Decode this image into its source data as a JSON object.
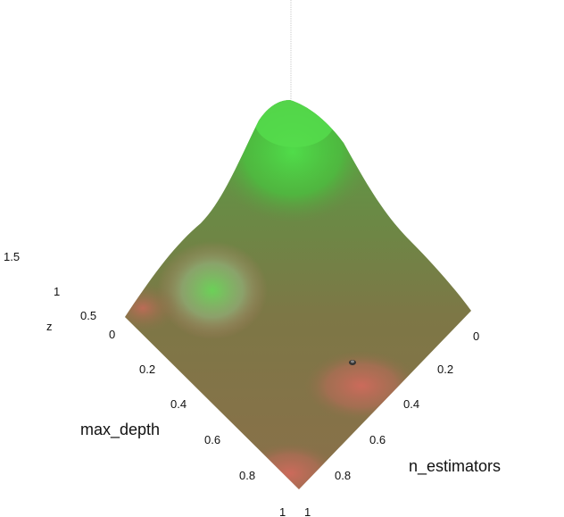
{
  "chart_data": {
    "type": "surface3d",
    "title": "",
    "axes": {
      "x": {
        "label": "max_depth",
        "range": [
          0,
          1
        ],
        "ticks": [
          "0",
          "0.2",
          "0.4",
          "0.6",
          "0.8",
          "1"
        ]
      },
      "y": {
        "label": "n_estimators",
        "range": [
          0,
          1
        ],
        "ticks": [
          "0",
          "0.2",
          "0.4",
          "0.6",
          "0.8",
          "1"
        ]
      },
      "z": {
        "label": "z",
        "ticks": [
          "0",
          "0.5",
          "1",
          "1.5"
        ]
      }
    },
    "grid": false,
    "colorscale": {
      "low": "#c96a5a",
      "mid": "#7c7a45",
      "high": "#4fe04a"
    },
    "surface_features": [
      {
        "description": "peak",
        "max_depth": 0,
        "n_estimators": 0,
        "z": 1.55
      },
      {
        "description": "green bump",
        "max_depth": 0.25,
        "n_estimators": 0.85,
        "z": 0.75
      },
      {
        "description": "red dip",
        "max_depth": 0.9,
        "n_estimators": 0.45,
        "z": 0.2
      },
      {
        "description": "red dip",
        "max_depth": 1,
        "n_estimators": 1,
        "z": 0.15
      }
    ]
  }
}
